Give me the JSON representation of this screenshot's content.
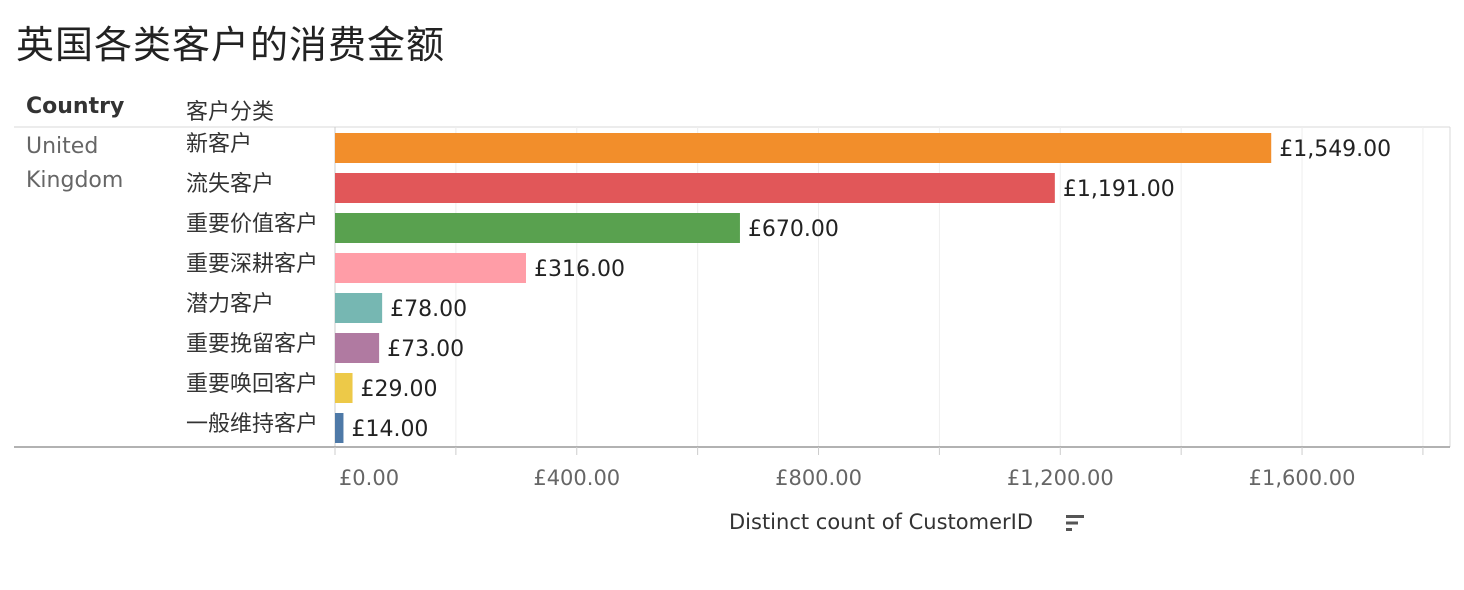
{
  "title": "英国各类客户的消费金额",
  "headers": {
    "country": "Country",
    "category": "客户分类"
  },
  "country": "United Kingdom",
  "chart_data": {
    "type": "bar",
    "orientation": "horizontal",
    "title": "英国各类客户的消费金额",
    "xlabel": "Distinct count of CustomerID",
    "ylabel": "",
    "xlim": [
      0,
      1800
    ],
    "x_ticks": [
      "£0.00",
      "£400.00",
      "£800.00",
      "£1,200.00",
      "£1,600.00"
    ],
    "x_tick_values": [
      0,
      400,
      800,
      1200,
      1600
    ],
    "grid": true,
    "categories": [
      "新客户",
      "流失客户",
      "重要价值客户",
      "重要深耕客户",
      "潜力客户",
      "重要挽留客户",
      "重要唤回客户",
      "一般维持客户"
    ],
    "values": [
      1549,
      1191,
      670,
      316,
      78,
      73,
      29,
      14
    ],
    "labels": [
      "£1,549.00",
      "£1,191.00",
      "£670.00",
      "£316.00",
      "£78.00",
      "£73.00",
      "£29.00",
      "£14.00"
    ],
    "colors": [
      "#f28e2b",
      "#e15759",
      "#59a14f",
      "#ff9da7",
      "#76b7b2",
      "#b07aa1",
      "#edc948",
      "#4e79a7"
    ]
  },
  "icons": {
    "sort": "sort-descending-icon"
  }
}
